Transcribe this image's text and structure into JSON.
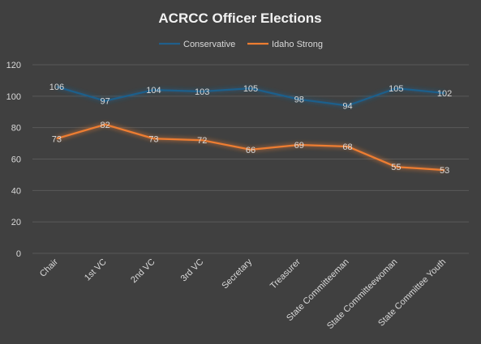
{
  "chart_data": {
    "type": "line",
    "title": "ACRCC Officer Elections",
    "categories": [
      "Chair",
      "1st VC",
      "2nd VC",
      "3rd VC",
      "Secretary",
      "Treasurer",
      "State Committeeman",
      "State Committeewoman",
      "State Committee Youth"
    ],
    "series": [
      {
        "name": "Conservative",
        "color": "#1f5f8b",
        "values": [
          106,
          97,
          104,
          103,
          105,
          98,
          94,
          105,
          102
        ]
      },
      {
        "name": "Idaho Strong",
        "color": "#ed7d31",
        "values": [
          73,
          82,
          73,
          72,
          66,
          69,
          68,
          55,
          53
        ]
      }
    ],
    "yticks": [
      "0",
      "20",
      "40",
      "60",
      "80",
      "100",
      "120"
    ],
    "ylim": [
      0,
      120
    ],
    "grid": true,
    "legend_position": "top",
    "data_labels": true,
    "background_color": "#404040"
  }
}
